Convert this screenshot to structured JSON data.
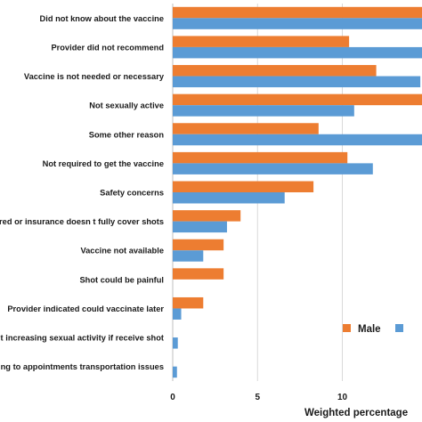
{
  "chart_data": {
    "type": "bar",
    "orientation": "horizontal",
    "categories": [
      "Did not know about the vaccine",
      "Provider did not recommend",
      "Vaccine is not needed or necessary",
      "Not sexually active",
      "Some other reason",
      "Not required to get the vaccine",
      "Safety concerns",
      "ured or insurance doesn t fully cover shots",
      "Vaccine not available",
      "Shot could be painful",
      "Provider indicated could vaccinate later",
      "ut increasing sexual activity if receive shot",
      "ing to appointments transportation issues"
    ],
    "series": [
      {
        "name": "Male",
        "color": "#ED7D31",
        "values": [
          15.6,
          10.4,
          12.0,
          15.6,
          8.6,
          10.3,
          8.3,
          4.0,
          3.0,
          3.0,
          1.8,
          null,
          null
        ]
      },
      {
        "name": "",
        "color": "#5B9BD5",
        "values": [
          15.6,
          15.6,
          14.6,
          10.7,
          15.6,
          11.8,
          6.6,
          3.2,
          1.8,
          null,
          0.5,
          0.3,
          0.25
        ]
      }
    ],
    "xlabel": "Weighted percentage",
    "ylabel": "",
    "xticks": [
      0,
      5,
      10
    ],
    "xlim": [
      0,
      14.7
    ],
    "grid": true,
    "legend": "bottom-right"
  }
}
